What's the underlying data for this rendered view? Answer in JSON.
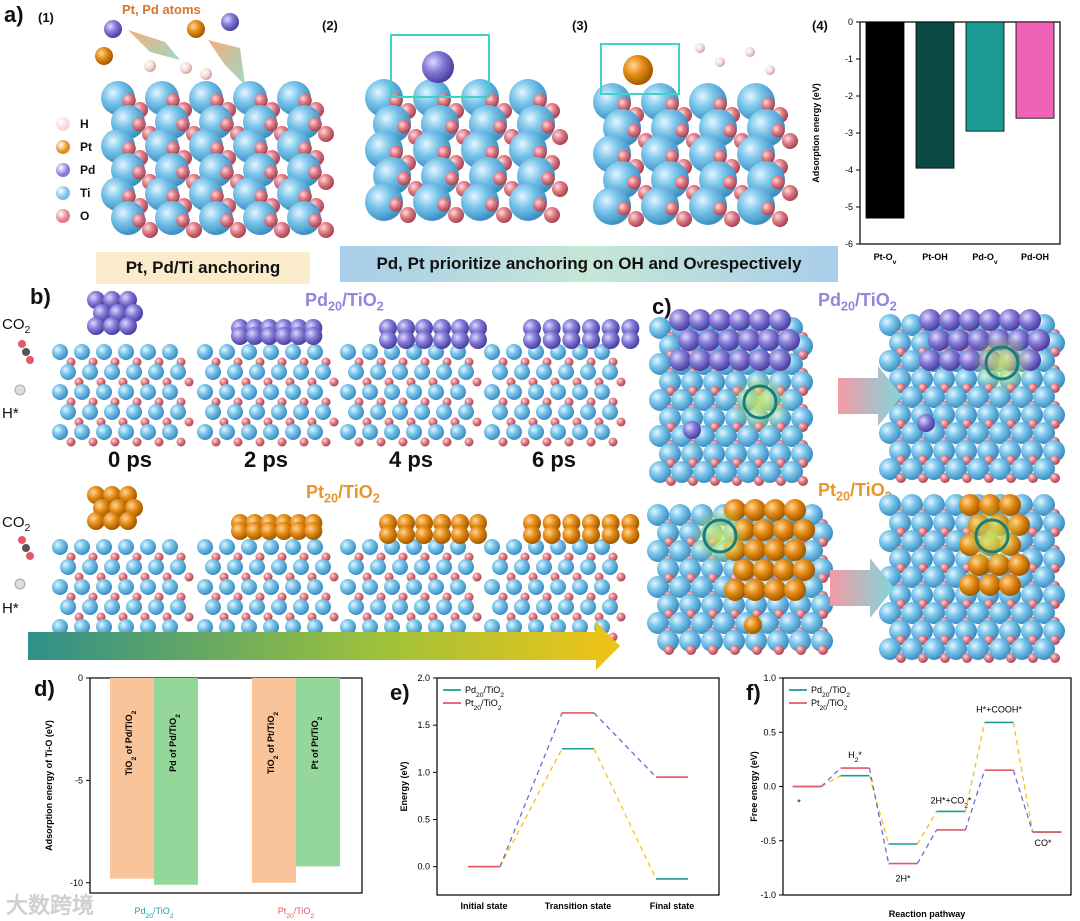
{
  "panel_a": {
    "letter": "a)",
    "sub1": "(1)",
    "sub2": "(2)",
    "sub3": "(3)",
    "sub4": "(4)",
    "atoms_label": "Pt, Pd atoms",
    "legend": [
      {
        "label": "H",
        "color": "#f3d9d6"
      },
      {
        "label": "Pt",
        "color": "#e58b14"
      },
      {
        "label": "Pd",
        "color": "#8479d6"
      },
      {
        "label": "Ti",
        "color": "#76bfe6"
      },
      {
        "label": "O",
        "color": "#e07b86"
      }
    ],
    "banner_left": "Pt, Pd/Ti anchoring",
    "banner_right": "Pd, Pt prioritize anchoring on OH and Ov respectively"
  },
  "panel_b": {
    "letter": "b)",
    "title_pd": "Pd20/TiO2",
    "title_pt": "Pt20/TiO2",
    "co2": "CO2",
    "h": "H*",
    "times": [
      "0 ps",
      "2 ps",
      "4 ps",
      "6 ps"
    ]
  },
  "panel_c": {
    "letter": "c)",
    "title_pd": "Pd20/TiO2",
    "title_pt": "Pt20/TiO2"
  },
  "panel_d_letter": "d)",
  "panel_e_letter": "e)",
  "panel_f_letter": "f)",
  "watermark": "大数跨境",
  "chart_data": [
    {
      "id": "a4",
      "type": "bar",
      "categories": [
        "Pt-Ov",
        "Pt-OH",
        "Pd-Ov",
        "Pd-OH"
      ],
      "values": [
        -5.3,
        -3.95,
        -2.95,
        -2.6
      ],
      "colors": [
        "#000000",
        "#0b4a45",
        "#1b9b93",
        "#f062b8"
      ],
      "ylabel": "Adsorption energy (eV)",
      "ylim": [
        -6,
        0
      ],
      "yticks": [
        "0",
        "-1",
        "-2",
        "-3",
        "-4",
        "-5",
        "-6"
      ]
    },
    {
      "id": "d",
      "type": "bar",
      "groups": [
        "Pd20/TiO2",
        "Pt20/TiO2"
      ],
      "group_colors": [
        "#18a3a8",
        "#e85a5a"
      ],
      "bars": [
        {
          "label": "TiO2 of  Pd/TiO2",
          "value": -9.8,
          "color": "#f9c49a"
        },
        {
          "label": "Pd of Pd/TiO2",
          "value": -10.1,
          "color": "#95d79a"
        },
        {
          "label": "TiO2 of  Pt/TiO2",
          "value": -10.0,
          "color": "#f9c49a"
        },
        {
          "label": "Pt of Pt/TiO2",
          "value": -9.2,
          "color": "#95d79a"
        }
      ],
      "ylabel": "Adsorption energy of Ti-O (eV)",
      "ylim": [
        -10.5,
        0
      ],
      "yticks": [
        {
          "v": 0,
          "t": "0"
        },
        {
          "v": -5,
          "t": "-5"
        },
        {
          "v": -10,
          "t": "-10"
        }
      ]
    },
    {
      "id": "e",
      "type": "line",
      "categories": [
        "Initial state",
        "Transition state",
        "Final state"
      ],
      "series": [
        {
          "name": "Pd20/TiO2",
          "values": [
            0,
            1.25,
            -0.13
          ],
          "color": "#1b9b93"
        },
        {
          "name": "Pt20/TiO2",
          "values": [
            0,
            1.63,
            0.95
          ],
          "color": "#e5586a"
        }
      ],
      "ylabel": "Energy (eV)",
      "ylim": [
        -0.3,
        2.0
      ],
      "yticks": [
        "0.0",
        "0.5",
        "1.0",
        "1.5",
        "2.0"
      ]
    },
    {
      "id": "f",
      "type": "line",
      "categories": [
        "*",
        "H2*",
        "2H*",
        "2H*+CO2*",
        "H*+COOH*",
        "CO*"
      ],
      "series": [
        {
          "name": "Pd20/TiO2",
          "values": [
            0,
            0.1,
            -0.53,
            -0.23,
            0.59,
            -0.42
          ],
          "color": "#1b9b93"
        },
        {
          "name": "Pt20/TiO2",
          "values": [
            0,
            0.17,
            -0.71,
            -0.4,
            0.15,
            -0.42
          ],
          "color": "#e5586a"
        }
      ],
      "xlabel": "Reaction pathway",
      "ylabel": "Free energy (eV)",
      "ylim": [
        -1.0,
        1.0
      ],
      "yticks": [
        "-1.0",
        "-0.5",
        "0.0",
        "0.5",
        "1.0"
      ]
    }
  ]
}
